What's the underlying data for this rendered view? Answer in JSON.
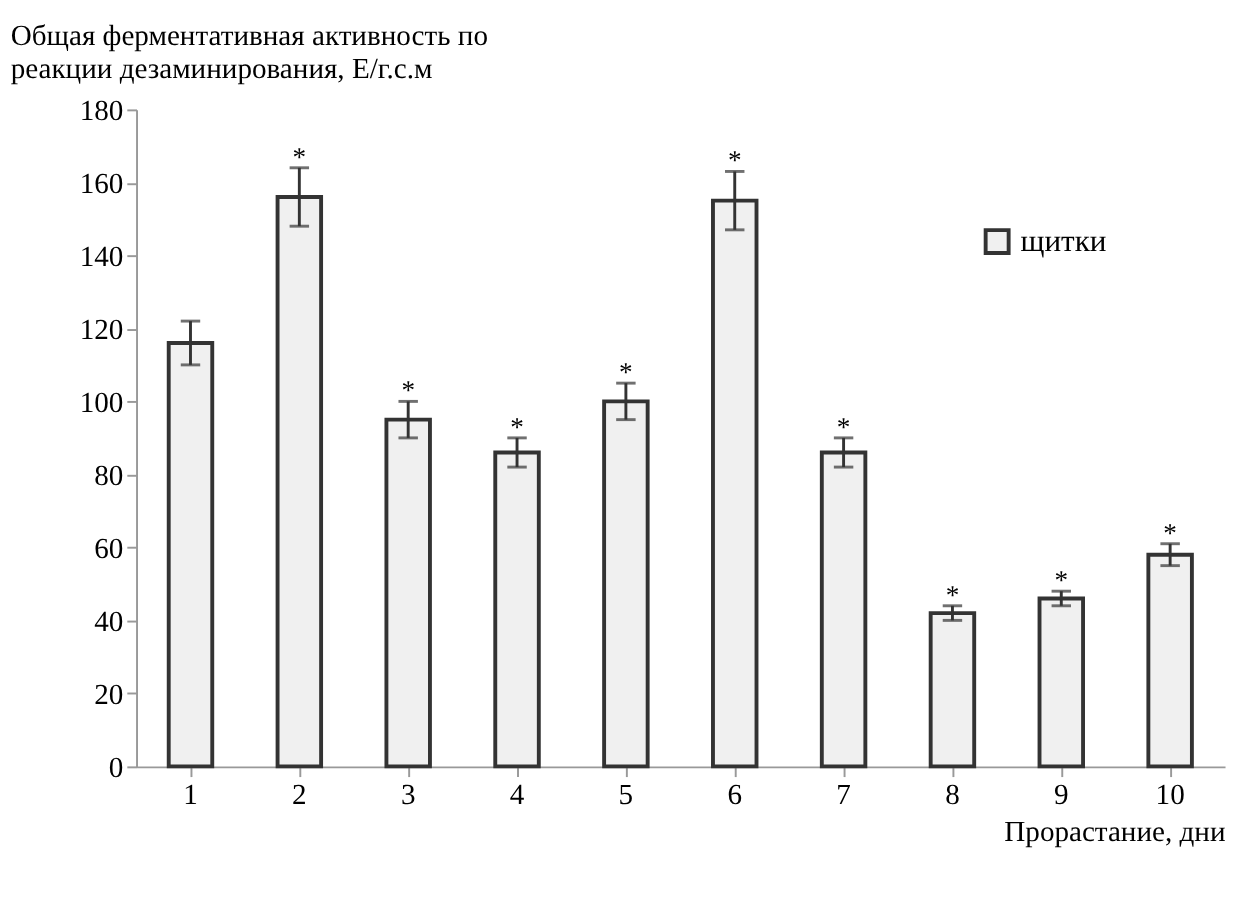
{
  "chart_data": {
    "type": "bar",
    "title": [
      "Общая ферментативная активность по",
      "реакции дезаминирования, Е/г.с.м"
    ],
    "xlabel": "Прорастание, дни",
    "categories": [
      "1",
      "2",
      "3",
      "4",
      "5",
      "6",
      "7",
      "8",
      "9",
      "10"
    ],
    "series": [
      {
        "name": "щитки",
        "color": "#f0f0f0",
        "values": [
          116,
          156,
          95,
          86,
          100,
          155,
          86,
          42,
          46,
          58
        ],
        "errors": [
          6,
          8,
          5,
          4,
          5,
          8,
          4,
          2,
          2,
          3
        ]
      }
    ],
    "ylim": [
      0,
      180
    ],
    "yticks": [
      0,
      20,
      40,
      60,
      80,
      100,
      120,
      140,
      160,
      180
    ],
    "grid": false,
    "legend": "top right",
    "annotations": [
      {
        "text": "*",
        "x": "2",
        "y": 164
      },
      {
        "text": "*",
        "x": "3",
        "y": 100
      },
      {
        "text": "*",
        "x": "4",
        "y": 90
      },
      {
        "text": "*",
        "x": "5",
        "y": 105
      },
      {
        "text": "*",
        "x": "6",
        "y": 163
      },
      {
        "text": "*",
        "x": "7",
        "y": 90
      },
      {
        "text": "*",
        "x": "8",
        "y": 44
      },
      {
        "text": "*",
        "x": "9",
        "y": 48
      },
      {
        "text": "*",
        "x": "10",
        "y": 61
      }
    ]
  }
}
